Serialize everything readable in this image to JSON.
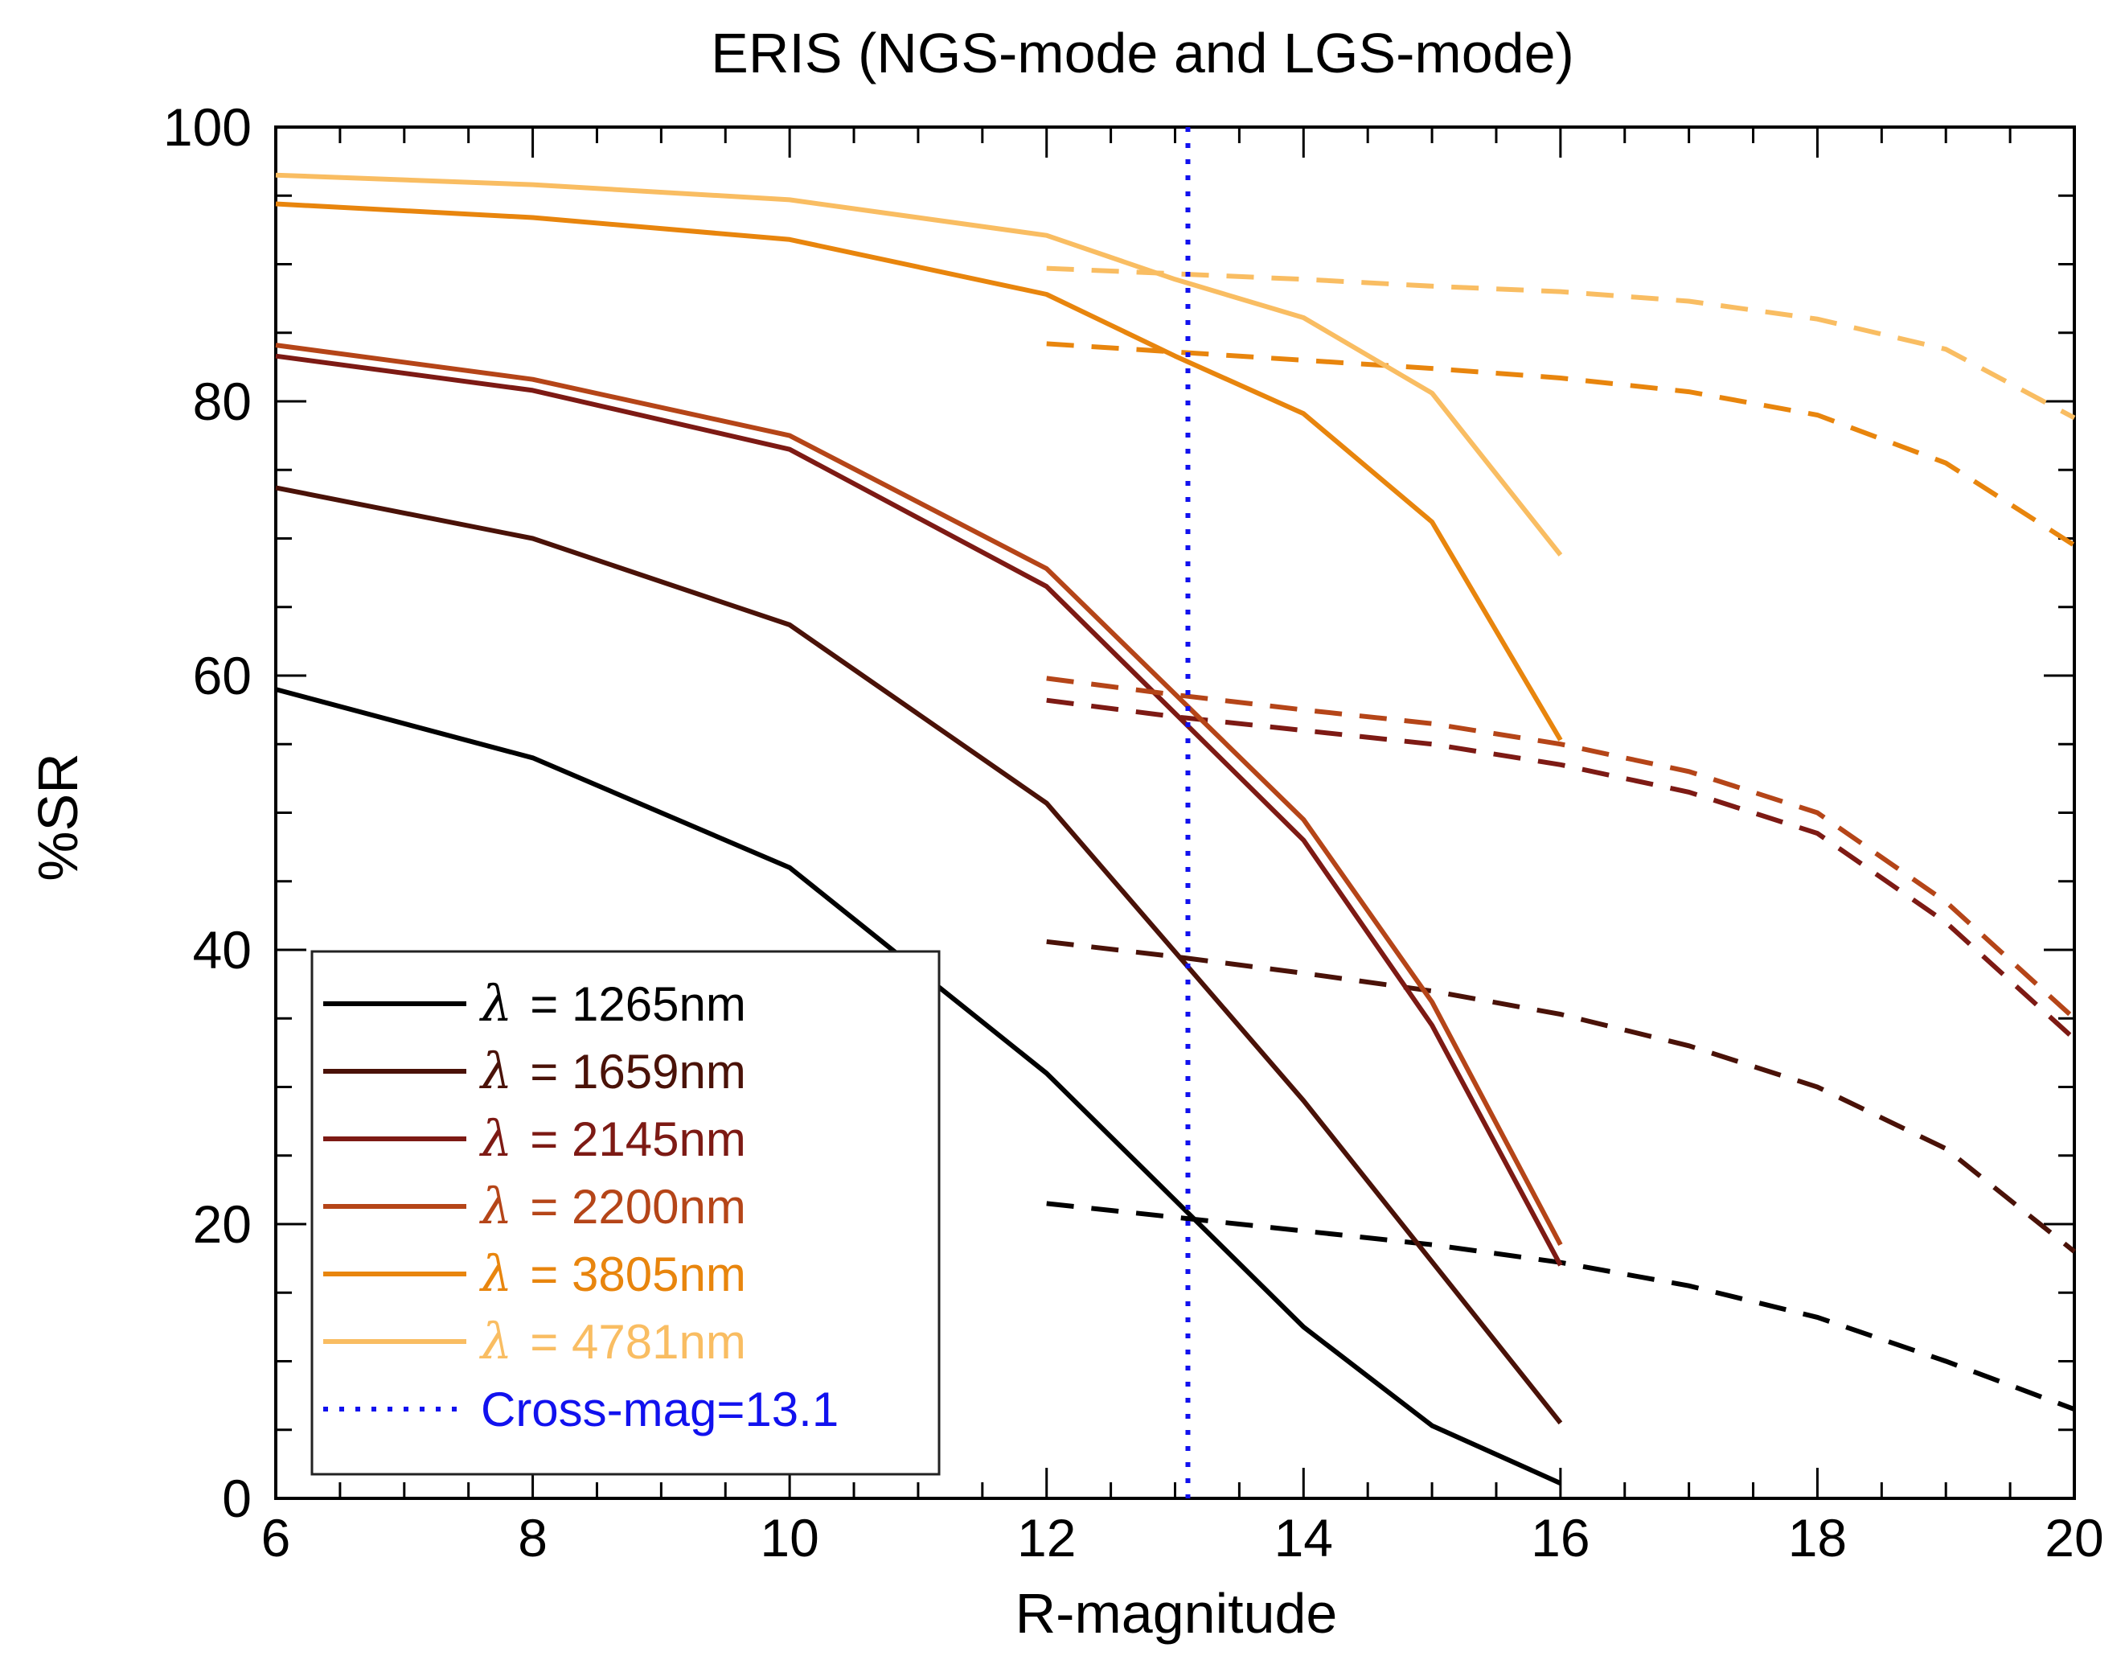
{
  "chart_data": {
    "type": "line",
    "title": "ERIS (NGS-mode and LGS-mode)",
    "xlabel": "R-magnitude",
    "ylabel": "%SR",
    "xlim": [
      6,
      20
    ],
    "ylim": [
      0,
      100
    ],
    "xticks": [
      6,
      8,
      10,
      12,
      14,
      16,
      18,
      20
    ],
    "yticks": [
      0,
      20,
      40,
      60,
      80,
      100
    ],
    "xtick_labels": [
      "6",
      "8",
      "10",
      "12",
      "14",
      "16",
      "18",
      "20"
    ],
    "ytick_labels": [
      "0",
      "20",
      "40",
      "60",
      "80",
      "100"
    ],
    "legend_position": "bottom-left",
    "lambda_symbol": "λ",
    "series": [
      {
        "name": "λ = 1265nm",
        "lambda": "λ",
        "label": "= 1265nm",
        "color": "#000000",
        "ngs": {
          "x": [
            6,
            8,
            10,
            12,
            14,
            15,
            16
          ],
          "y": [
            59,
            54,
            46,
            31,
            12.5,
            5.3,
            1.1
          ]
        },
        "lgs": {
          "x": [
            12,
            13,
            14,
            15,
            16,
            17,
            18,
            19,
            20
          ],
          "y": [
            21.5,
            20.5,
            19.5,
            18.5,
            17.2,
            15.5,
            13.2,
            10,
            6.5
          ]
        }
      },
      {
        "name": "λ = 1659nm",
        "lambda": "λ",
        "label": "= 1659nm",
        "color": "#4a1208",
        "ngs": {
          "x": [
            6,
            8,
            10,
            12,
            14,
            16
          ],
          "y": [
            73.7,
            70,
            63.7,
            50.7,
            29,
            5.5
          ]
        },
        "lgs": {
          "x": [
            12,
            13,
            14,
            15,
            16,
            17,
            18,
            19,
            20
          ],
          "y": [
            40.6,
            39.5,
            38.3,
            37,
            35.3,
            33,
            30,
            25.5,
            18
          ]
        }
      },
      {
        "name": "λ = 2145nm",
        "lambda": "λ",
        "label": "= 2145nm",
        "color": "#7d1a14",
        "ngs": {
          "x": [
            6,
            8,
            10,
            12,
            14,
            15,
            16
          ],
          "y": [
            83.3,
            80.8,
            76.5,
            66.5,
            48,
            34.5,
            17
          ]
        },
        "lgs": {
          "x": [
            12,
            13,
            14,
            15,
            16,
            17,
            18,
            19,
            20
          ],
          "y": [
            58.2,
            57,
            56,
            55,
            53.5,
            51.5,
            48.5,
            42,
            33.5
          ]
        }
      },
      {
        "name": "λ = 2200nm",
        "lambda": "λ",
        "label": "= 2200nm",
        "color": "#b54518",
        "ngs": {
          "x": [
            6,
            8,
            10,
            12,
            14,
            15,
            16
          ],
          "y": [
            84.1,
            81.6,
            77.5,
            67.8,
            49.5,
            36.2,
            18.5
          ]
        },
        "lgs": {
          "x": [
            12,
            13,
            14,
            15,
            16,
            17,
            18,
            19,
            20
          ],
          "y": [
            59.8,
            58.6,
            57.5,
            56.5,
            55,
            53,
            50,
            43.5,
            35
          ]
        }
      },
      {
        "name": "λ = 3805nm",
        "lambda": "λ",
        "label": "= 3805nm",
        "color": "#e8850d",
        "ngs": {
          "x": [
            6,
            8,
            10,
            12,
            13,
            14,
            15,
            16
          ],
          "y": [
            94.4,
            93.4,
            91.8,
            87.8,
            83.3,
            79.1,
            71.2,
            55.3
          ]
        },
        "lgs": {
          "x": [
            12,
            13,
            14,
            15,
            16,
            17,
            18,
            19,
            20
          ],
          "y": [
            84.2,
            83.6,
            83,
            82.4,
            81.7,
            80.7,
            79,
            75.5,
            69.5
          ]
        }
      },
      {
        "name": "λ = 4781nm",
        "lambda": "λ",
        "label": "= 4781nm",
        "color": "#f9bd62",
        "ngs": {
          "x": [
            6,
            8,
            10,
            12,
            13,
            14,
            15,
            16
          ],
          "y": [
            96.5,
            95.8,
            94.7,
            92.1,
            88.9,
            86.1,
            80.6,
            68.8
          ]
        },
        "lgs": {
          "x": [
            12,
            13,
            14,
            15,
            16,
            17,
            18,
            19,
            20
          ],
          "y": [
            89.7,
            89.3,
            88.9,
            88.4,
            88,
            87.3,
            86,
            83.8,
            78.8
          ]
        }
      }
    ],
    "crossmag": {
      "x": 13.1,
      "label": "Cross-mag=13.1",
      "color": "#1111ee"
    }
  }
}
